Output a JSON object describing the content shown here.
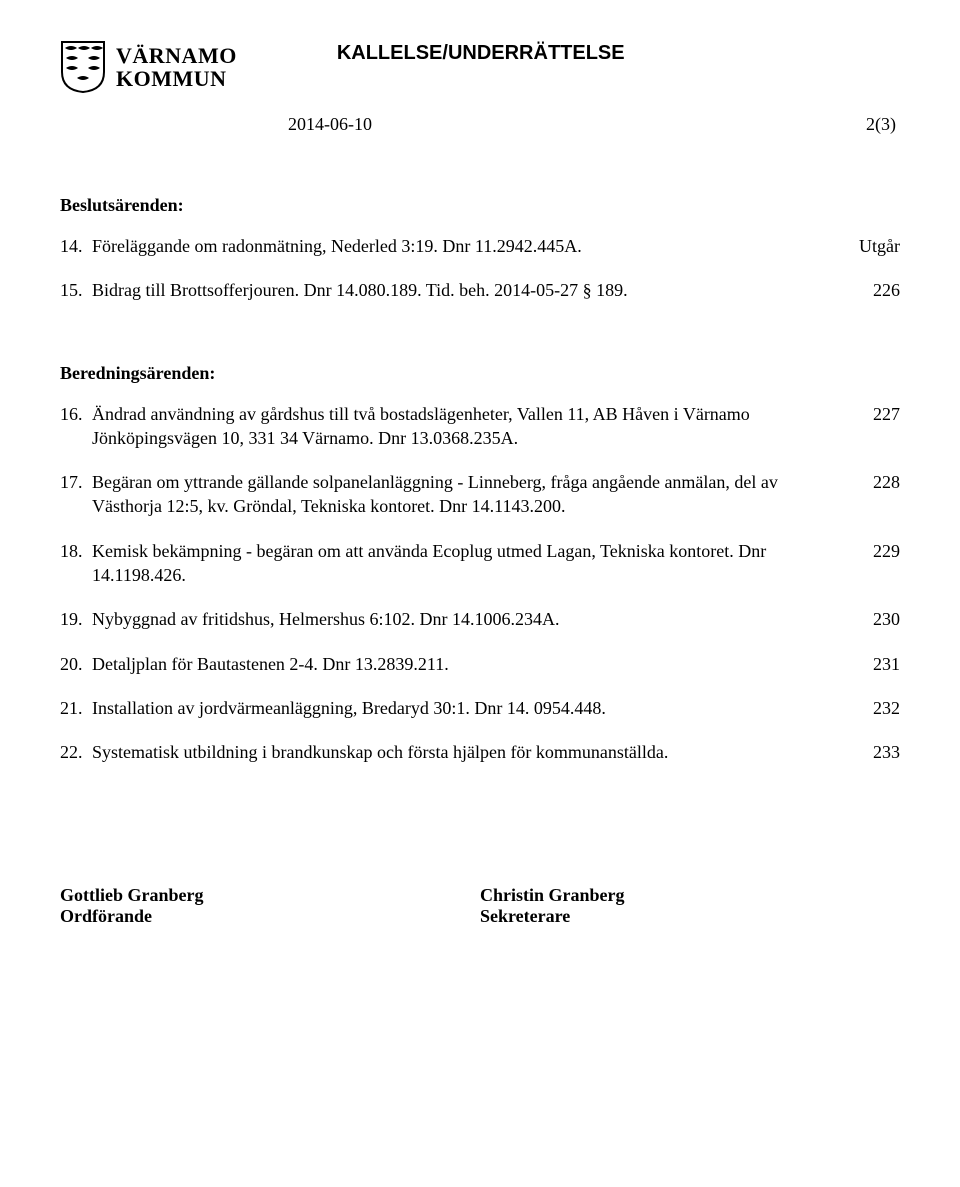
{
  "org": {
    "line1": "VÄRNAMO",
    "line2": "KOMMUN"
  },
  "doc_title": "KALLELSE/UNDERRÄTTELSE",
  "meta": {
    "date": "2014-06-10",
    "page": "2(3)"
  },
  "sections": [
    {
      "heading": "Beslutsärenden:",
      "items": [
        {
          "num": "14.",
          "text": "Föreläggande om radonmätning, Nederled 3:19. Dnr 11.2942.445A.",
          "ref": "Utgår"
        },
        {
          "num": "15.",
          "text": "Bidrag till Brottsofferjouren. Dnr 14.080.189. Tid. beh. 2014-05-27 § 189.",
          "ref": "226"
        }
      ]
    },
    {
      "heading": "Beredningsärenden:",
      "items": [
        {
          "num": "16.",
          "text": "Ändrad användning av gårdshus till två bostadslägenheter, Vallen 11, AB Håven i Värnamo Jönköpingsvägen 10, 331 34 Värnamo. Dnr 13.0368.235A.",
          "ref": "227"
        },
        {
          "num": "17.",
          "text": "Begäran om yttrande gällande solpanelanläggning - Linneberg, fråga angående anmälan, del av Västhorja 12:5, kv. Gröndal, Tekniska kontoret. Dnr 14.1143.200.",
          "ref": "228"
        },
        {
          "num": "18.",
          "text": "Kemisk bekämpning - begäran om att använda Ecoplug utmed Lagan, Tekniska kontoret. Dnr 14.1198.426.",
          "ref": "229"
        },
        {
          "num": "19.",
          "text": "Nybyggnad av fritidshus, Helmershus 6:102. Dnr 14.1006.234A.",
          "ref": "230"
        },
        {
          "num": "20.",
          "text": "Detaljplan för Bautastenen 2-4. Dnr 13.2839.211.",
          "ref": "231"
        },
        {
          "num": "21.",
          "text": "Installation av jordvärmeanläggning, Bredaryd 30:1. Dnr 14. 0954.448.",
          "ref": "232"
        },
        {
          "num": "22.",
          "text": "Systematisk utbildning i brandkunskap och första hjälpen för kommunanställda.",
          "ref": "233"
        }
      ]
    }
  ],
  "signatures": {
    "left": {
      "name": "Gottlieb Granberg",
      "title": "Ordförande"
    },
    "right": {
      "name": "Christin Granberg",
      "title": "Sekreterare"
    }
  }
}
